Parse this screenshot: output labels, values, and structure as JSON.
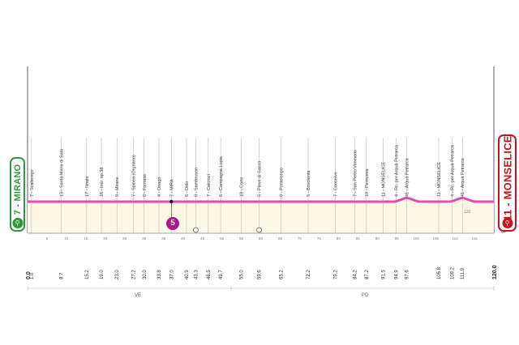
{
  "start": {
    "label": "7 - MIRANO",
    "km": 0.0,
    "icon": "start-finish-icon"
  },
  "finish": {
    "label": "11 - MONSELICE",
    "km": 120.0,
    "icon": "start-finish-icon"
  },
  "sprint": {
    "label": "5",
    "km": 37.0
  },
  "intermediate_sprint_km": [
    43.3,
    59.6
  ],
  "elevation_tag": "120",
  "end_label": "SDS",
  "waypoints": [
    {
      "name": "7 - Scaltenigo",
      "km": 1.0
    },
    {
      "name": "13 - Santa Maria di Sala",
      "km": 8.7
    },
    {
      "name": "17 - Noale",
      "km": 15.2
    },
    {
      "name": "16 - Incr. sp.38",
      "km": 19.0
    },
    {
      "name": "9 - Mirane",
      "km": 23.0
    },
    {
      "name": "7 - Spinea (Orgnano)",
      "km": 27.2
    },
    {
      "name": "6 - Fornase",
      "km": 30.0
    },
    {
      "name": "4 - Oriago",
      "km": 33.8
    },
    {
      "name": "7 - MIRA",
      "km": 37.0
    },
    {
      "name": "6 - Dolo",
      "km": 40.9
    },
    {
      "name": "8 - Sambruson",
      "km": 43.3
    },
    {
      "name": "7 - Calcroci",
      "km": 46.5
    },
    {
      "name": "6 - Campagna Lupia",
      "km": 49.7
    },
    {
      "name": "10 - Corte",
      "km": 55.0
    },
    {
      "name": "5 - Piove di Sacco",
      "km": 59.6
    },
    {
      "name": "8 - Pontelongo",
      "km": 65.2
    },
    {
      "name": "5 - Bovolenta",
      "km": 72.2
    },
    {
      "name": "7 - Conselve",
      "km": 79.2
    },
    {
      "name": "7 - San Pietro Viminario",
      "km": 84.2
    },
    {
      "name": "10 - Pernumia",
      "km": 87.2
    },
    {
      "name": "11 - MONSELICE",
      "km": 91.5
    },
    {
      "name": "4 - Rc. per Arquà  Petrarca",
      "km": 94.9
    },
    {
      "name": "41 - Arquà Petrarca",
      "km": 97.6
    },
    {
      "name": "11 - MONSELICE",
      "km": 105.8
    },
    {
      "name": "4 - Rc. per Arquà  Petrarca",
      "km": 109.2
    },
    {
      "name": "41 - Arquà Petrarca",
      "km": 111.9
    }
  ],
  "scale_ticks": [
    "5",
    "10",
    "15",
    "20",
    "25",
    "30",
    "35",
    "40",
    "45",
    "50",
    "55",
    "60",
    "65",
    "70",
    "75",
    "80",
    "85",
    "90",
    "95",
    "100",
    "105",
    "110",
    "115"
  ],
  "provinces": [
    "VE",
    "PD"
  ],
  "colors": {
    "route": "#e34ab5",
    "fill": "#faf8e4",
    "start": "#2e9a3d",
    "finish": "#c9141d",
    "sprint": "#b0148f"
  }
}
